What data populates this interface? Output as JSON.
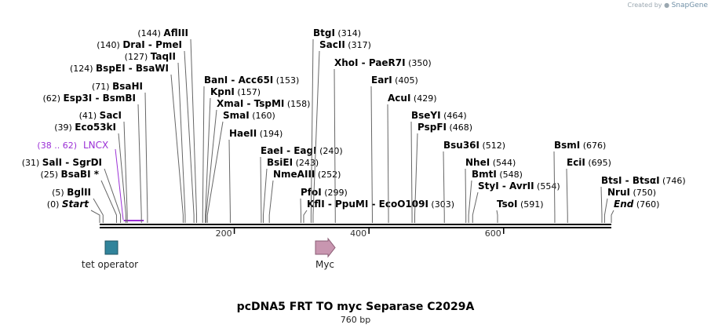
{
  "credit": {
    "text": "Created by",
    "brand": "SnapGene"
  },
  "title": "pcDNA5 FRT TO myc Separase C2029A",
  "length_label": "760 bp",
  "sequence_length": 760,
  "colors": {
    "backbone": "#000000",
    "lncx": "#9b30d6",
    "tet_operator": "#31849b",
    "myc": "#c896b0",
    "leader": "#666666"
  },
  "ticks": [
    {
      "bp": 200,
      "label": "200"
    },
    {
      "bp": 400,
      "label": "400"
    },
    {
      "bp": 600,
      "label": "600"
    }
  ],
  "features": [
    {
      "name": "tet operator",
      "type": "box",
      "bp": 18,
      "color": "#31849b"
    },
    {
      "name": "Myc",
      "type": "arrow",
      "bp": 333,
      "color": "#c896b0"
    }
  ],
  "primer": {
    "name": "LNCX",
    "range": "(38 .. 62)",
    "start": 38,
    "end": 62
  },
  "sites": [
    {
      "name": "Start",
      "pos": "(0)",
      "bp": 0,
      "italic": true
    },
    {
      "name": "BglII",
      "pos": "(5)",
      "bp": 5
    },
    {
      "name": "BsaBI *",
      "pos": "(25)",
      "bp": 25
    },
    {
      "name": "SalI - SgrDI",
      "pos": "(31)",
      "bp": 31
    },
    {
      "name": "Eco53kI",
      "pos": "(39)",
      "bp": 39
    },
    {
      "name": "SacI",
      "pos": "(41)",
      "bp": 41
    },
    {
      "name": "Esp3I - BsmBI",
      "pos": "(62)",
      "bp": 62
    },
    {
      "name": "BsaHI",
      "pos": "(71)",
      "bp": 71
    },
    {
      "name": "BspEI - BsaWI",
      "pos": "(124)",
      "bp": 124
    },
    {
      "name": "TaqII",
      "pos": "(127)",
      "bp": 127
    },
    {
      "name": "DraI - PmeI",
      "pos": "(140)",
      "bp": 140
    },
    {
      "name": "AflIII",
      "pos": "(144)",
      "bp": 144
    },
    {
      "name": "BanI - Acc65I",
      "pos": "(153)",
      "bp": 153
    },
    {
      "name": "KpnI",
      "pos": "(157)",
      "bp": 157
    },
    {
      "name": "XmaI - TspMI",
      "pos": "(158)",
      "bp": 158
    },
    {
      "name": "SmaI",
      "pos": "(160)",
      "bp": 160
    },
    {
      "name": "HaeII",
      "pos": "(194)",
      "bp": 194
    },
    {
      "name": "EaeI - EagI",
      "pos": "(240)",
      "bp": 240
    },
    {
      "name": "BsiEI",
      "pos": "(243)",
      "bp": 243
    },
    {
      "name": "NmeAIII",
      "pos": "(252)",
      "bp": 252
    },
    {
      "name": "PfoI",
      "pos": "(299)",
      "bp": 299
    },
    {
      "name": "KflI - PpuMI - EcoO109I",
      "pos": "(303)",
      "bp": 303
    },
    {
      "name": "BtgI",
      "pos": "(314)",
      "bp": 314
    },
    {
      "name": "SacII",
      "pos": "(317)",
      "bp": 317
    },
    {
      "name": "XhoI - PaeR7I",
      "pos": "(350)",
      "bp": 350
    },
    {
      "name": "EarI",
      "pos": "(405)",
      "bp": 405
    },
    {
      "name": "AcuI",
      "pos": "(429)",
      "bp": 429
    },
    {
      "name": "BseYI",
      "pos": "(464)",
      "bp": 464
    },
    {
      "name": "PspFI",
      "pos": "(468)",
      "bp": 468
    },
    {
      "name": "Bsu36I",
      "pos": "(512)",
      "bp": 512
    },
    {
      "name": "NheI",
      "pos": "(544)",
      "bp": 544
    },
    {
      "name": "BmtI",
      "pos": "(548)",
      "bp": 548
    },
    {
      "name": "StyI - AvrII",
      "pos": "(554)",
      "bp": 554
    },
    {
      "name": "TsoI",
      "pos": "(591)",
      "bp": 591
    },
    {
      "name": "BsmI",
      "pos": "(676)",
      "bp": 676
    },
    {
      "name": "EciI",
      "pos": "(695)",
      "bp": 695
    },
    {
      "name": "BtsI - BtsαI",
      "pos": "(746)",
      "bp": 746
    },
    {
      "name": "NruI",
      "pos": "(750)",
      "bp": 750
    },
    {
      "name": "End",
      "pos": "(760)",
      "bp": 760,
      "italic": true
    }
  ]
}
